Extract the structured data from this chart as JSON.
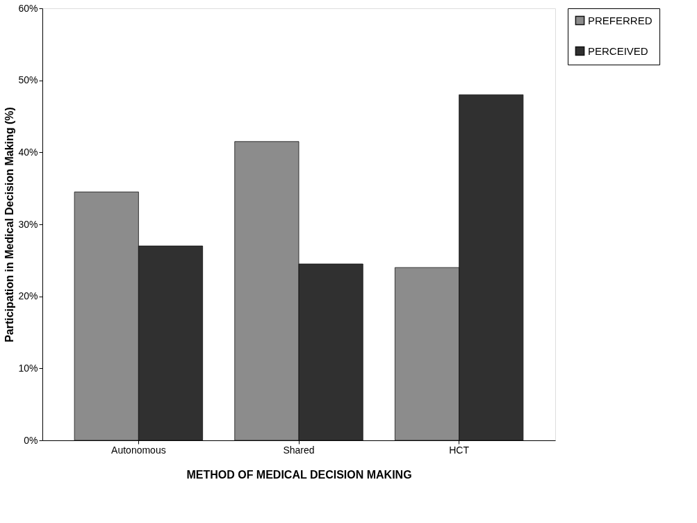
{
  "chart_data": {
    "type": "bar",
    "xlabel": "METHOD OF MEDICAL DECISION MAKING",
    "ylabel": "Participation in Medical Decision Making (%)",
    "categories": [
      "Autonomous",
      "Shared",
      "HCT"
    ],
    "series": [
      {
        "name": "PREFERRED",
        "color": "#8c8c8c",
        "values": [
          34.5,
          41.5,
          24
        ]
      },
      {
        "name": "PERCEIVED",
        "color": "#303030",
        "values": [
          27,
          24.5,
          48
        ]
      }
    ],
    "ylim": [
      0,
      60
    ],
    "yticks": [
      {
        "value": 0,
        "label": "0%"
      },
      {
        "value": 10,
        "label": "10%"
      },
      {
        "value": 20,
        "label": "20%"
      },
      {
        "value": 30,
        "label": "30%"
      },
      {
        "value": 40,
        "label": "40%"
      },
      {
        "value": 50,
        "label": "50%"
      },
      {
        "value": 60,
        "label": "60%"
      }
    ],
    "grid": false,
    "legend": "right"
  }
}
